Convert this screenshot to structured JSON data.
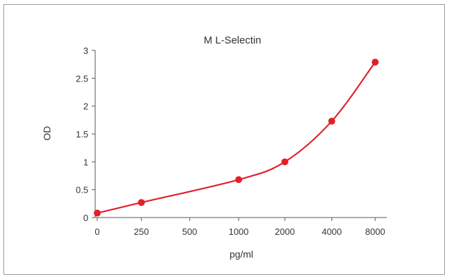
{
  "chart_data": {
    "type": "line",
    "title": "M  L-Selectin",
    "xlabel": "pg/ml",
    "ylabel": "OD",
    "categories": [
      "0",
      "250",
      "500",
      "1000",
      "2000",
      "4000",
      "8000"
    ],
    "series": [
      {
        "x": [
          "0",
          "250",
          "1000",
          "2000",
          "4000",
          "8000"
        ],
        "values": [
          0.08,
          0.27,
          0.68,
          1.0,
          1.73,
          2.79
        ],
        "color": "#e0202a"
      }
    ],
    "ylim": [
      0,
      3
    ],
    "yticks": [
      "0",
      "0.5",
      "1",
      "1.5",
      "2",
      "2.5",
      "3"
    ],
    "grid": false,
    "legend": "none"
  }
}
